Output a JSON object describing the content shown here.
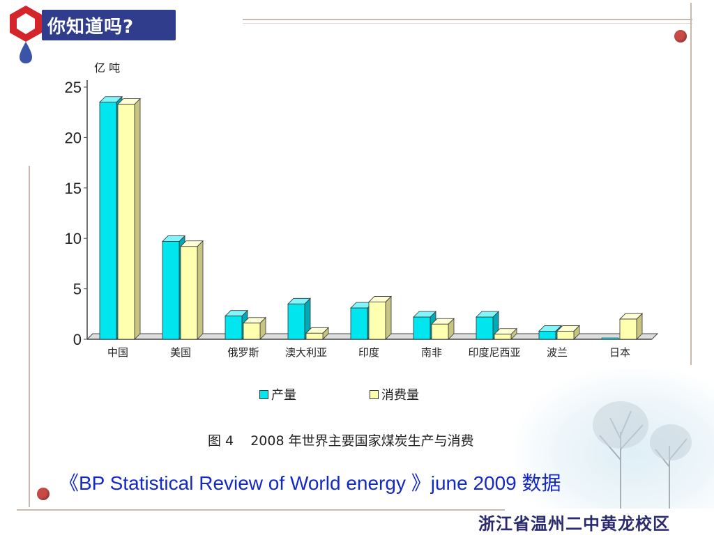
{
  "header": {
    "badge_text": "你知道吗?"
  },
  "chart_data": {
    "type": "bar",
    "ylabel": "亿 吨",
    "ylim": [
      0,
      25
    ],
    "yticks": [
      0,
      5,
      10,
      15,
      20,
      25
    ],
    "categories": [
      "中国",
      "美国",
      "俄罗斯",
      "澳大利亚",
      "印度",
      "南非",
      "印度尼西亚",
      "波兰",
      "日本"
    ],
    "series": [
      {
        "name": "产量",
        "color": "#00e5ee",
        "values": [
          23.5,
          9.7,
          2.3,
          3.5,
          3.1,
          2.2,
          2.2,
          0.8,
          0.0
        ]
      },
      {
        "name": "消费量",
        "color": "#ffffb0",
        "values": [
          23.3,
          9.2,
          1.6,
          0.6,
          3.7,
          1.5,
          0.5,
          0.8,
          2.0
        ]
      }
    ],
    "caption_number": "图 4",
    "caption_text": "2008 年世界主要国家煤炭生产与消费",
    "grid": false,
    "legend_position": "bottom"
  },
  "source": {
    "text": "《BP Statistical Review of World energy 》june 2009 数据"
  },
  "footer": {
    "school": "浙江省温州二中黄龙校区"
  },
  "colors": {
    "accent_dot": "#c84a45",
    "badge_bg": "#2f3d8c",
    "frame": "#c9b9ad",
    "source_text": "#1428c4"
  }
}
